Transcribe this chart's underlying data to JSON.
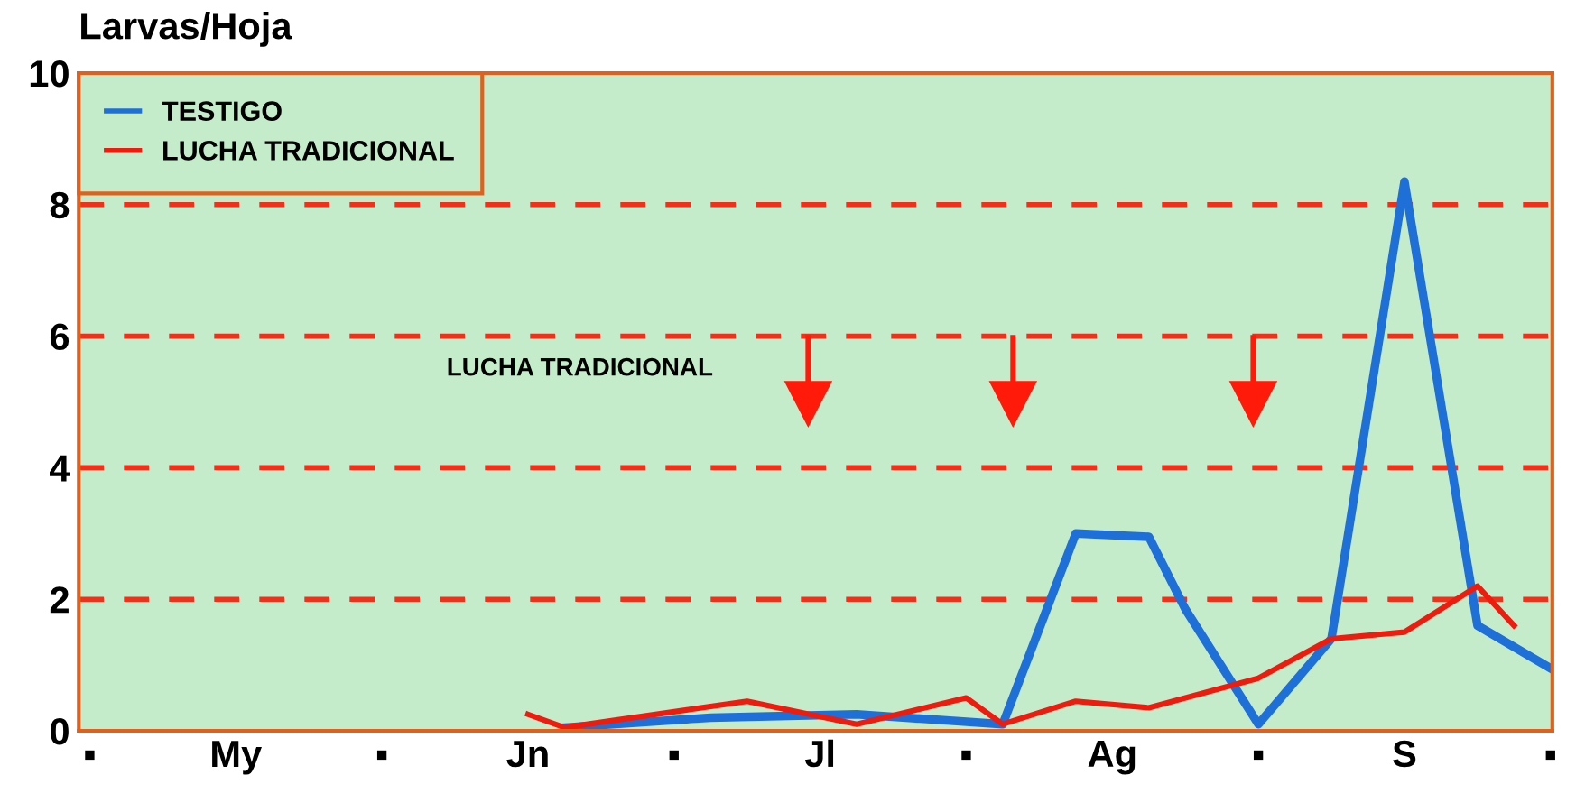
{
  "chart_data": {
    "type": "line",
    "ylabel": "Larvas/Hoja",
    "categories": [
      "▪",
      null,
      null,
      null,
      "My",
      null,
      null,
      null,
      "▪",
      null,
      null,
      null,
      "Jn",
      null,
      null,
      null,
      "▪",
      null,
      null,
      null,
      "Jl",
      null,
      null,
      null,
      "▪",
      null,
      null,
      null,
      "Ag",
      null,
      null,
      null,
      "▪",
      null,
      null,
      null,
      "S",
      null,
      null,
      null,
      "▪"
    ],
    "ylim": [
      0,
      10
    ],
    "yticks": [
      0,
      2,
      4,
      6,
      8,
      10
    ],
    "grid": "y",
    "legend": "top left",
    "line_style": "solid",
    "marker": "none",
    "annotations": [
      "LUCHA TRADICIONAL"
    ],
    "series": [
      {
        "name": "TESTIGO",
        "color": "#1f6fd8",
        "values": [
          null,
          null,
          null,
          null,
          null,
          null,
          null,
          null,
          null,
          null,
          null,
          null,
          null,
          0.05,
          null,
          null,
          null,
          0.2,
          null,
          null,
          null,
          0.25,
          null,
          null,
          null,
          0.1,
          null,
          3.0,
          null,
          2.95,
          1.85,
          null,
          0.1,
          null,
          1.4,
          null,
          8.35,
          null,
          1.6,
          null,
          0.95
        ]
      },
      {
        "name": "LUCHA TRADICIONAL",
        "color": "#ee1c0e",
        "values": [
          null,
          null,
          null,
          null,
          null,
          null,
          null,
          null,
          null,
          null,
          null,
          null,
          0.25,
          0.05,
          null,
          null,
          null,
          null,
          0.45,
          null,
          null,
          0.1,
          null,
          null,
          0.5,
          0.1,
          null,
          0.45,
          null,
          0.35,
          null,
          null,
          0.8,
          null,
          1.4,
          null,
          1.5,
          null,
          2.2,
          1.6,
          null
        ]
      }
    ]
  }
}
